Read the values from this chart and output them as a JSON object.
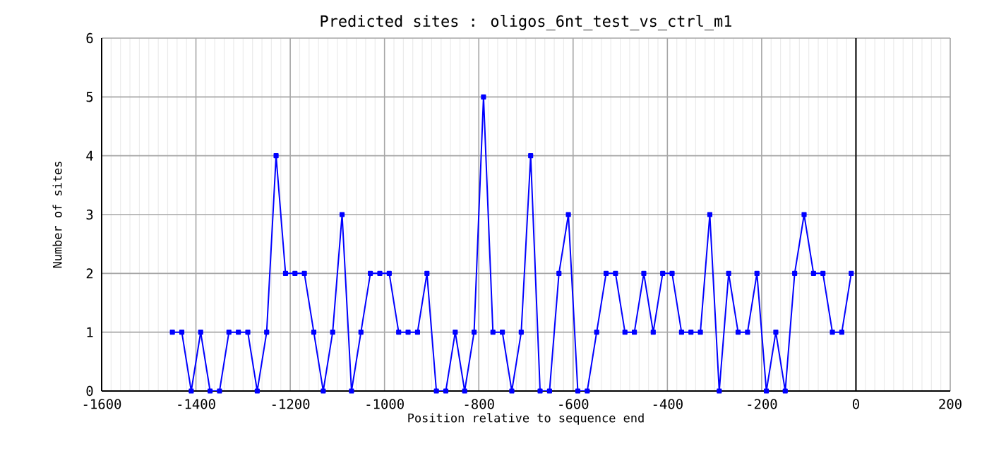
{
  "chart_data": {
    "type": "line",
    "title": "Predicted sites : oligos_6nt_test_vs_ctrl_m1",
    "xlabel": "Position relative to sequence end",
    "ylabel": "Number of sites",
    "x": [
      -1450,
      -1430,
      -1410,
      -1390,
      -1370,
      -1350,
      -1330,
      -1310,
      -1290,
      -1270,
      -1250,
      -1230,
      -1210,
      -1190,
      -1170,
      -1150,
      -1130,
      -1110,
      -1090,
      -1070,
      -1050,
      -1030,
      -1010,
      -990,
      -970,
      -950,
      -930,
      -910,
      -890,
      -870,
      -850,
      -830,
      -810,
      -790,
      -770,
      -750,
      -730,
      -710,
      -690,
      -670,
      -650,
      -630,
      -610,
      -590,
      -570,
      -550,
      -530,
      -510,
      -490,
      -470,
      -450,
      -430,
      -410,
      -390,
      -370,
      -350,
      -330,
      -310,
      -290,
      -270,
      -250,
      -230,
      -210,
      -190,
      -170,
      -150,
      -130,
      -110,
      -90,
      -70,
      -50,
      -30,
      -10
    ],
    "series": [
      {
        "color": "#0000ff",
        "values": [
          1,
          1,
          0,
          1,
          0,
          0,
          1,
          1,
          1,
          0,
          1,
          4,
          2,
          2,
          2,
          1,
          0,
          1,
          3,
          0,
          1,
          2,
          2,
          2,
          1,
          1,
          1,
          2,
          0,
          0,
          1,
          0,
          1,
          5,
          1,
          1,
          0,
          1,
          4,
          0,
          0,
          2,
          3,
          0,
          0,
          1,
          2,
          2,
          1,
          1,
          2,
          1,
          2,
          2,
          1,
          1,
          1,
          3,
          0,
          2,
          1,
          1,
          2,
          0,
          1,
          0,
          2,
          3,
          2,
          2,
          1,
          1,
          2
        ]
      }
    ],
    "xlim": [
      -1600,
      200
    ],
    "xticks": [
      -1600,
      -1400,
      -1200,
      -1000,
      -800,
      -600,
      -400,
      -200,
      0,
      200
    ],
    "ylim": [
      0,
      6
    ],
    "yticks": [
      0,
      1,
      2,
      3,
      4,
      5,
      6
    ],
    "ref_lines": [
      {
        "axis": "x",
        "value": 0,
        "color": "#000000"
      }
    ],
    "grid": true,
    "marker": "square",
    "line_style": "solid"
  }
}
